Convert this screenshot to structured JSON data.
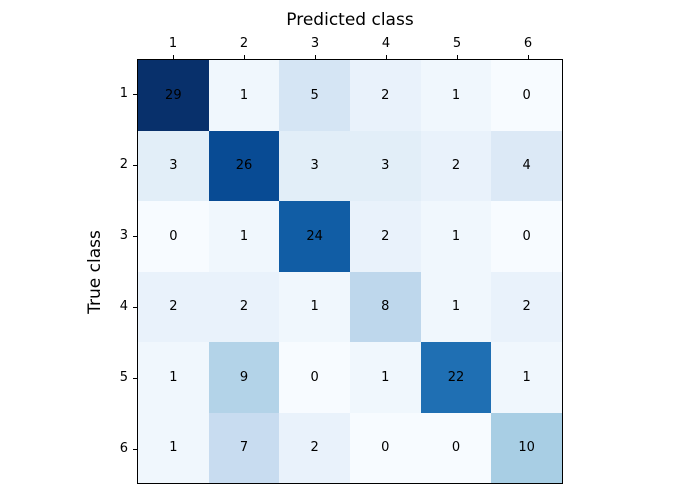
{
  "chart_data": {
    "type": "heatmap",
    "title": "",
    "xlabel": "Predicted class",
    "ylabel": "True class",
    "x_tick_labels": [
      "1",
      "2",
      "3",
      "4",
      "5",
      "6"
    ],
    "y_tick_labels": [
      "1",
      "2",
      "3",
      "4",
      "5",
      "6"
    ],
    "matrix": [
      [
        29,
        1,
        5,
        2,
        1,
        0
      ],
      [
        3,
        26,
        3,
        3,
        2,
        4
      ],
      [
        0,
        1,
        24,
        2,
        1,
        0
      ],
      [
        2,
        2,
        1,
        8,
        1,
        2
      ],
      [
        1,
        9,
        0,
        1,
        22,
        1
      ],
      [
        1,
        7,
        2,
        0,
        0,
        10
      ]
    ],
    "vmin": 0,
    "vmax": 29,
    "colormap": "Blues",
    "colormap_stops": [
      "#f7fbff",
      "#deebf7",
      "#c6dbef",
      "#9ecae1",
      "#6baed6",
      "#4292c6",
      "#2171b5",
      "#08519c",
      "#08306b"
    ],
    "cell_text_color": "#000000",
    "axes_border_color": "#000000",
    "background_color": "#ffffff",
    "legend": "none",
    "grid": "off"
  }
}
